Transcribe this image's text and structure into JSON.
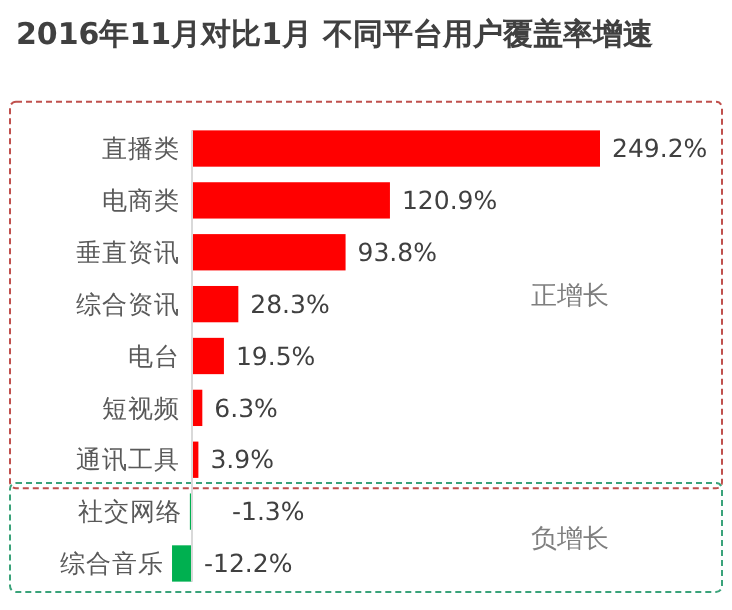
{
  "chart_data": {
    "type": "bar",
    "orientation": "horizontal",
    "title": "2016年11月对比1月 不同平台用户覆盖率增速",
    "categories": [
      "直播类",
      "电商类",
      "垂直资讯",
      "综合资讯",
      "电台",
      "短视频",
      "通讯工具",
      "社交网络",
      "综合音乐"
    ],
    "values": [
      249.2,
      120.9,
      93.8,
      28.3,
      19.5,
      6.3,
      3.9,
      -1.3,
      -12.2
    ],
    "colors": [
      "#ff0000",
      "#ff0000",
      "#ff0000",
      "#ff0000",
      "#ff0000",
      "#ff0000",
      "#ff0000",
      "#00b050",
      "#00b050"
    ],
    "value_labels": [
      "249.2%",
      "120.9%",
      "93.8%",
      "28.3%",
      "19.5%",
      "6.3%",
      "3.9%",
      "-1.3%",
      "-12.2%"
    ],
    "annotations": [
      "正增长",
      "负增长"
    ]
  }
}
